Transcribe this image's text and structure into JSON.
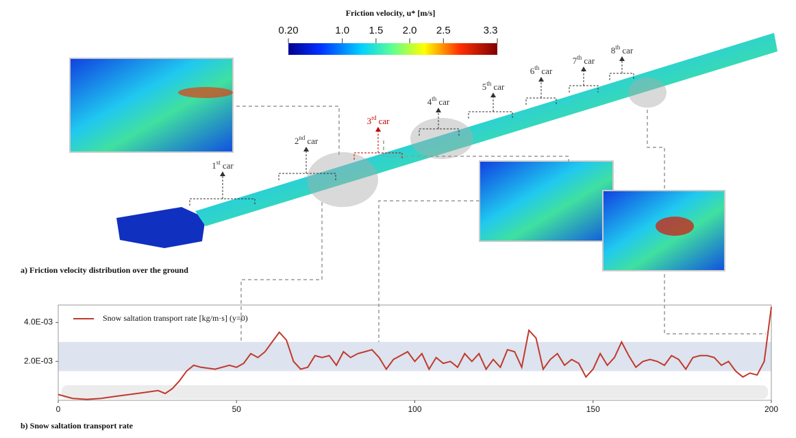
{
  "colorbar": {
    "title": "Friction velocity, u* [m/s]",
    "range": [
      0.2,
      3.3
    ],
    "ticks": [
      {
        "value": 0.2,
        "label": "0.20"
      },
      {
        "value": 1,
        "label": "1.0"
      },
      1.5,
      {
        "value": 2,
        "label": "2.0"
      },
      2.5,
      3.3
    ]
  },
  "cars": [
    {
      "n": "1",
      "sup": "st",
      "text": "car"
    },
    {
      "n": "2",
      "sup": "nd",
      "text": "car"
    },
    {
      "n": "3",
      "sup": "rd",
      "text": "car"
    },
    {
      "n": "4",
      "sup": "th",
      "text": "car"
    },
    {
      "n": "5",
      "sup": "th",
      "text": "car"
    },
    {
      "n": "6",
      "sup": "th",
      "text": "car"
    },
    {
      "n": "7",
      "sup": "th",
      "text": "car"
    },
    {
      "n": "8",
      "sup": "th",
      "text": "car"
    }
  ],
  "panel_a": "a) Friction velocity distribution over the ground",
  "panel_b": "b) Snow saltation transport rate",
  "chart_data": {
    "type": "line",
    "x": [
      0,
      4,
      8,
      12,
      16,
      20,
      24,
      28,
      30,
      32,
      34,
      36,
      38,
      40,
      44,
      48,
      50,
      52,
      54,
      56,
      58,
      60,
      62,
      64,
      66,
      68,
      70,
      72,
      74,
      76,
      78,
      80,
      82,
      84,
      86,
      88,
      90,
      92,
      94,
      96,
      98,
      100,
      102,
      104,
      106,
      108,
      110,
      112,
      114,
      116,
      118,
      120,
      122,
      124,
      126,
      128,
      130,
      132,
      134,
      136,
      138,
      140,
      142,
      144,
      146,
      148,
      150,
      152,
      154,
      156,
      158,
      160,
      162,
      164,
      166,
      168,
      170,
      172,
      174,
      176,
      178,
      180,
      182,
      184,
      186,
      188,
      190,
      192,
      194,
      196,
      198,
      200
    ],
    "series": [
      {
        "name": "Snow saltation transport rate [kg/m·s]  (y=0)",
        "color": "#c0392b",
        "values": [
          0.0003,
          0.0001,
          5e-05,
          0.0001,
          0.0002,
          0.0003,
          0.0004,
          0.0005,
          0.00035,
          0.0006,
          0.001,
          0.0015,
          0.0018,
          0.0017,
          0.0016,
          0.0018,
          0.0017,
          0.0019,
          0.0024,
          0.0022,
          0.0025,
          0.003,
          0.0035,
          0.0031,
          0.002,
          0.0016,
          0.0017,
          0.0023,
          0.0022,
          0.0023,
          0.0018,
          0.0025,
          0.0022,
          0.0024,
          0.0025,
          0.0026,
          0.0022,
          0.0016,
          0.0021,
          0.0023,
          0.0025,
          0.002,
          0.0024,
          0.0016,
          0.0022,
          0.0019,
          0.002,
          0.0017,
          0.0024,
          0.002,
          0.0024,
          0.0016,
          0.0021,
          0.0017,
          0.0026,
          0.0025,
          0.0017,
          0.0036,
          0.0032,
          0.0016,
          0.0021,
          0.0024,
          0.0018,
          0.0021,
          0.0019,
          0.0012,
          0.0016,
          0.0024,
          0.0018,
          0.0022,
          0.003,
          0.0023,
          0.0017,
          0.002,
          0.0021,
          0.002,
          0.0018,
          0.0023,
          0.0021,
          0.0016,
          0.0022,
          0.0023,
          0.0023,
          0.0022,
          0.0018,
          0.002,
          0.0015,
          0.0012,
          0.0014,
          0.0013,
          0.002,
          0.0048
        ]
      }
    ],
    "xlim": [
      0,
      200
    ],
    "xticks": [
      0,
      50,
      100,
      150,
      200
    ],
    "ylim": [
      0,
      0.0049
    ],
    "yticks": [
      {
        "value": 0.002,
        "label": "2.0E-03"
      },
      {
        "value": 0.004,
        "label": "4.0E-03"
      }
    ],
    "band": [
      0.0015,
      0.003
    ]
  }
}
